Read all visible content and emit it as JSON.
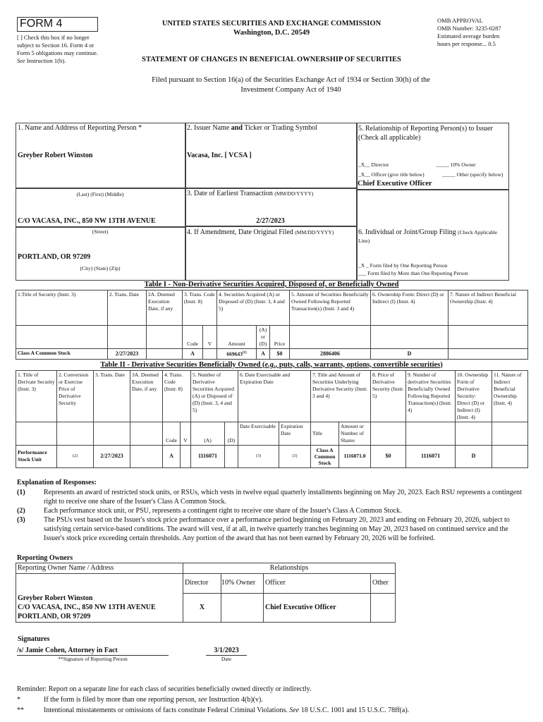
{
  "header": {
    "form_label": "FORM 4",
    "checkbox_note": "[ ] Check this box if no longer subject to Section 16. Form 4 or Form 5 obligations may continue.",
    "checkbox_see": "See",
    "checkbox_instr": "Instruction 1(b).",
    "agency": "UNITED STATES SECURITIES AND EXCHANGE COMMISSION",
    "location": "Washington, D.C. 20549",
    "omb": [
      "OMB APPROVAL",
      "OMB Number: 3235-0287",
      "Estimated average burden",
      "hours per response... 0.5"
    ],
    "statement_title": "STATEMENT OF CHANGES IN BENEFICIAL OWNERSHIP OF SECURITIES",
    "filed_pursuant": "Filed pursuant to Section 16(a) of the Securities Exchange Act of 1934 or Section 30(h) of the",
    "filed_pursuant2": "Investment Company Act of 1940"
  },
  "box1": {
    "label": "1. Name and Address of Reporting Person",
    "label_mark": "*",
    "name": "Greyber Robert Winston",
    "name_caption": "(Last)  (First)  (Middle)",
    "street": "C/O VACASA, INC., 850 NW 13TH AVENUE",
    "street_caption": "(Street)",
    "city": "PORTLAND, OR 97209",
    "city_caption": "(City)  (State)  (Zip)"
  },
  "box2": {
    "label_pre": "2. Issuer Name ",
    "label_and": "and",
    "label_post": " Ticker or Trading Symbol",
    "value": "Vacasa, Inc. [ VCSA ]"
  },
  "box3": {
    "label": "3. Date of Earliest Transaction",
    "label_small": "(MM/DD/YYYY)",
    "value": "2/27/2023"
  },
  "box4": {
    "label": "4. If Amendment, Date Original Filed",
    "label_small": "(MM/DD/YYYY)"
  },
  "box5": {
    "label": "5. Relationship of Reporting Person(s) to Issuer",
    "label2": "(Check all applicable)",
    "director": "_X__ Director",
    "owner10": "_____ 10% Owner",
    "officer": "_X__ Officer (give title below)",
    "other": "_____ Other (specify below)",
    "title": "Chief Executive Officer"
  },
  "box6": {
    "label": "6. Individual or Joint/Group Filing",
    "label_small": "(Check Applicable Line)",
    "one": "_X _ Form filed by One Reporting Person",
    "more": "___ Form filed by More than One Reporting Person"
  },
  "table1": {
    "title": "Table I - Non-Derivative Securities Acquired, Disposed of, or Beneficially Owned",
    "headers": [
      "1.Title of Security (Instr. 3)",
      "2. Trans. Date",
      "2A. Deemed Execution Date, if any",
      "3. Trans. Code (Instr. 8)",
      "4. Securities Acquired (A) or Disposed of (D) (Instr. 3, 4 and 5)",
      "5. Amount of Securities Beneficially Owned Following Reported Transaction(s) (Instr. 3 and 4)",
      "6. Ownership Form: Direct (D) or Indirect (I) (Instr. 4)",
      "7. Nature of Indirect Beneficial Ownership (Instr. 4)"
    ],
    "subheaders": {
      "code": "Code",
      "v": "V",
      "amount": "Amount",
      "aord": "(A) or (D)",
      "price": "Price"
    },
    "rows": [
      {
        "title": "Class A Common Stock",
        "date": "2/27/2023",
        "deemed": "",
        "code": "A",
        "v": "",
        "amount": "669643",
        "amount_fn": "(1)",
        "aord": "A",
        "price": "$0",
        "owned": "2886406",
        "form": "D",
        "nature": ""
      }
    ]
  },
  "table2": {
    "title_pre": "Table II - Derivative Securities Beneficially Owned (",
    "title_eg": "e.g.",
    "title_post": ", puts, calls, warrants, options, convertible securities)",
    "headers": [
      "1. Title of Derivate Security (Instr. 3)",
      "2. Conversion or Exercise Price of Derivative Security",
      "3. Trans. Date",
      "3A. Deemed Execution Date, if any",
      "4. Trans. Code (Instr. 8)",
      "5. Number of Derivative Securities Acquired (A) or Disposed of (D) (Instr. 3, 4 and 5)",
      "6. Date Exercisable and Expiration Date",
      "7. Title and Amount of Securities Underlying Derivative Security (Instr. 3 and 4)",
      "8. Price of Derivative Security (Instr. 5)",
      "9. Number of derivative Securities Beneficially Owned Following Reported Transaction(s) (Instr. 4)",
      "10. Ownership Form of Derivative Security: Direct (D) or Indirect (I) (Instr. 4)",
      "11. Nature of Indirect Beneficial Ownership (Instr. 4)"
    ],
    "subheaders": {
      "code": "Code",
      "v": "V",
      "a": "(A)",
      "d": "(D)",
      "exercisable": "Date Exercisable",
      "expiration": "Expiration Date",
      "title": "Title",
      "amount": "Amount or Number of Shares"
    },
    "rows": [
      {
        "title": "Performance Stock Unit",
        "conversion_fn": "(2)",
        "date": "2/27/2023",
        "deemed": "",
        "code": "A",
        "v": "",
        "a": "1116071",
        "d": "",
        "exercisable_fn": "(3)",
        "expiration_fn": "(3)",
        "und_title": "Class A Common Stock",
        "und_amount": "1116071.0",
        "price": "$0",
        "owned": "1116071",
        "form": "D",
        "nature": ""
      }
    ]
  },
  "explanation": {
    "title": "Explanation of Responses:",
    "items": [
      {
        "num": "(1)",
        "text": "Represents an award of restricted stock units, or RSUs, which vests in twelve equal quarterly installments beginning on May 20, 2023. Each RSU represents a contingent right to receive one share of the Issuer's Class A Common Stock."
      },
      {
        "num": "(2)",
        "text": "Each performance stock unit, or PSU, represents a contingent right to receive one share of the Issuer's Class A Common Stock."
      },
      {
        "num": "(3)",
        "text": "The PSUs vest based on the Issuer's stock price performance over a performance period beginning on February 20, 2023 and ending on February 20, 2026, subject to satisfying certain service-based conditions. The award will vest, if at all, in twelve quarterly tranches beginning on May 20, 2023 based on continued service and the Issuer's stock price exceeding certain thresholds. Any portion of the award that has not been earned by February 20, 2026 will be forfeited."
      }
    ]
  },
  "owners": {
    "title": "Reporting Owners",
    "col_name": "Reporting Owner Name / Address",
    "col_rel": "Relationships",
    "col_director": "Director",
    "col_owner": "10% Owner",
    "col_officer": "Officer",
    "col_other": "Other",
    "row": {
      "name": "Greyber Robert Winston",
      "street": "C/O VACASA, INC., 850 NW 13TH AVENUE",
      "city": "PORTLAND, OR 97209",
      "director": "X",
      "owner": "",
      "officer": "Chief Executive Officer",
      "other": ""
    }
  },
  "signatures": {
    "title": "Signatures",
    "signature": "/s/ Jamie Cohen, Attorney in Fact",
    "sig_caption": "**Signature of Reporting Person",
    "date": "3/1/2023",
    "date_caption": "Date"
  },
  "reminder": {
    "text": "Reminder: Report on a separate line for each class of securities beneficially owned directly or indirectly.",
    "notes": [
      {
        "mark": "*",
        "pre": "If the form is filed by more than one reporting person, ",
        "see": "see",
        "post": " Instruction 4(b)(v)."
      },
      {
        "mark": "**",
        "pre": "Intentional misstatements or omissions of facts constitute Federal Criminal Violations. ",
        "see": "See",
        "post": " 18 U.S.C. 1001 and 15 U.S.C. 78ff(a)."
      }
    ]
  }
}
